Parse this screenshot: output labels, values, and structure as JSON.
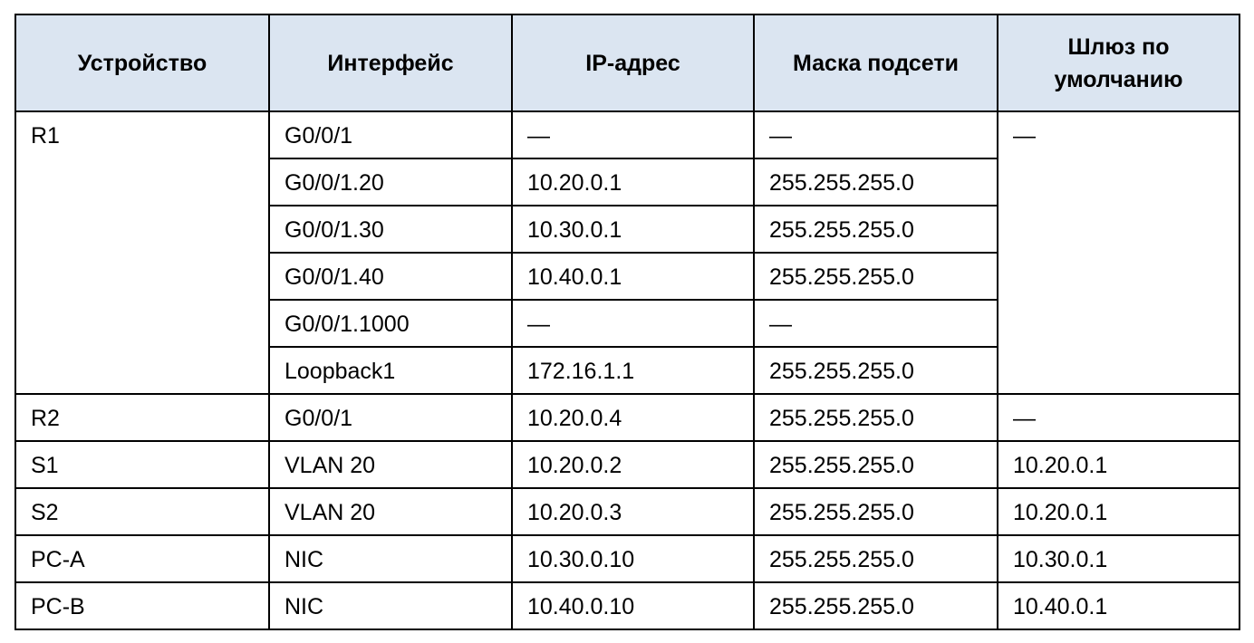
{
  "table": {
    "headers": {
      "device": "Устройство",
      "interface": "Интерфейс",
      "ip": "IP-адрес",
      "mask": "Маска подсети",
      "gateway_line1": "Шлюз по",
      "gateway_line2": "умолчанию"
    },
    "r1": {
      "device": "R1",
      "gateway": "—",
      "rows": [
        {
          "interface": "G0/0/1",
          "ip": "—",
          "mask": "—"
        },
        {
          "interface": "G0/0/1.20",
          "ip": "10.20.0.1",
          "mask": "255.255.255.0"
        },
        {
          "interface": "G0/0/1.30",
          "ip": "10.30.0.1",
          "mask": "255.255.255.0"
        },
        {
          "interface": "G0/0/1.40",
          "ip": "10.40.0.1",
          "mask": "255.255.255.0"
        },
        {
          "interface": "G0/0/1.1000",
          "ip": "—",
          "mask": "—"
        },
        {
          "interface": "Loopback1",
          "ip": "172.16.1.1",
          "mask": "255.255.255.0"
        }
      ]
    },
    "rows": [
      {
        "device": "R2",
        "interface": "G0/0/1",
        "ip": "10.20.0.4",
        "mask": "255.255.255.0",
        "gateway": "—"
      },
      {
        "device": "S1",
        "interface": "VLAN 20",
        "ip": "10.20.0.2",
        "mask": "255.255.255.0",
        "gateway": "10.20.0.1"
      },
      {
        "device": "S2",
        "interface": "VLAN 20",
        "ip": "10.20.0.3",
        "mask": "255.255.255.0",
        "gateway": "10.20.0.1"
      },
      {
        "device": "PC-A",
        "interface": "NIC",
        "ip": "10.30.0.10",
        "mask": "255.255.255.0",
        "gateway": "10.30.0.1"
      },
      {
        "device": "PC-B",
        "interface": "NIC",
        "ip": "10.40.0.10",
        "mask": "255.255.255.0",
        "gateway": "10.40.0.1"
      }
    ]
  }
}
